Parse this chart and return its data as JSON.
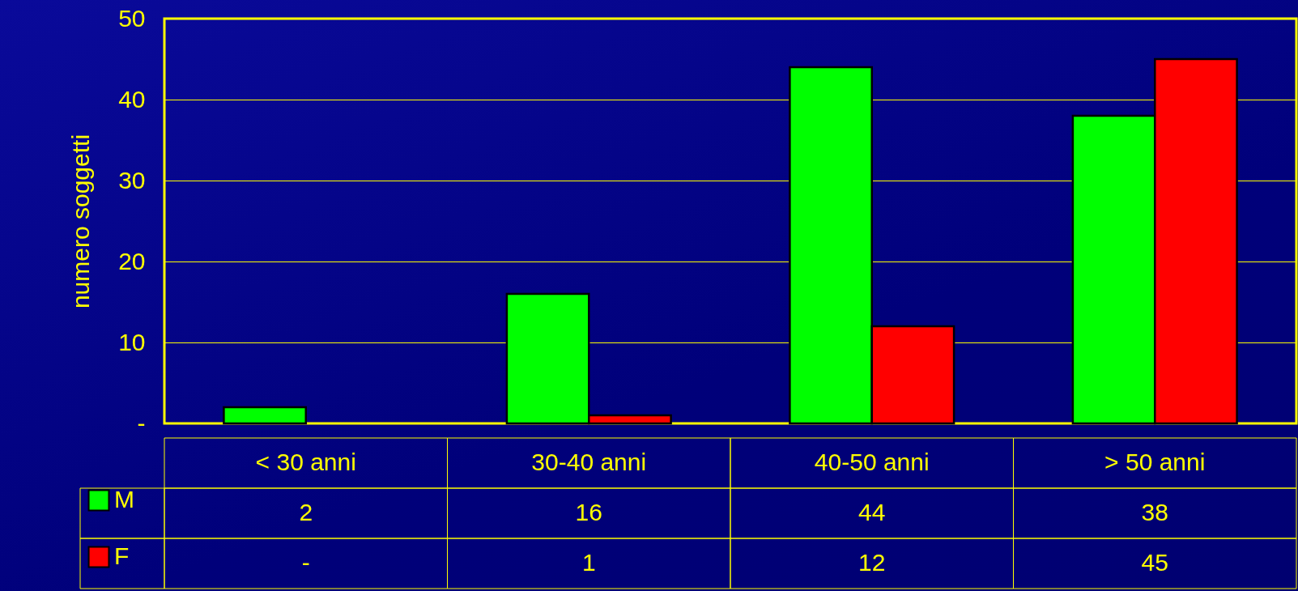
{
  "chart_data": {
    "type": "bar",
    "ylabel": "numero soggetti",
    "categories": [
      "< 30 anni",
      "30-40 anni",
      "40-50 anni",
      "> 50 anni"
    ],
    "series": [
      {
        "name": "M",
        "color": "#00ff00",
        "values": [
          2,
          16,
          44,
          38
        ],
        "value_labels": [
          "2",
          "16",
          "44",
          "38"
        ]
      },
      {
        "name": "F",
        "color": "#ff0000",
        "values": [
          null,
          1,
          12,
          45
        ],
        "value_labels": [
          "-",
          "1",
          "12",
          "45"
        ]
      }
    ],
    "ylim": [
      0,
      50
    ],
    "yticks": [
      {
        "value": 0,
        "label": "-"
      },
      10,
      20,
      30,
      40,
      50
    ],
    "grid": "y",
    "legend": "bottom left"
  }
}
